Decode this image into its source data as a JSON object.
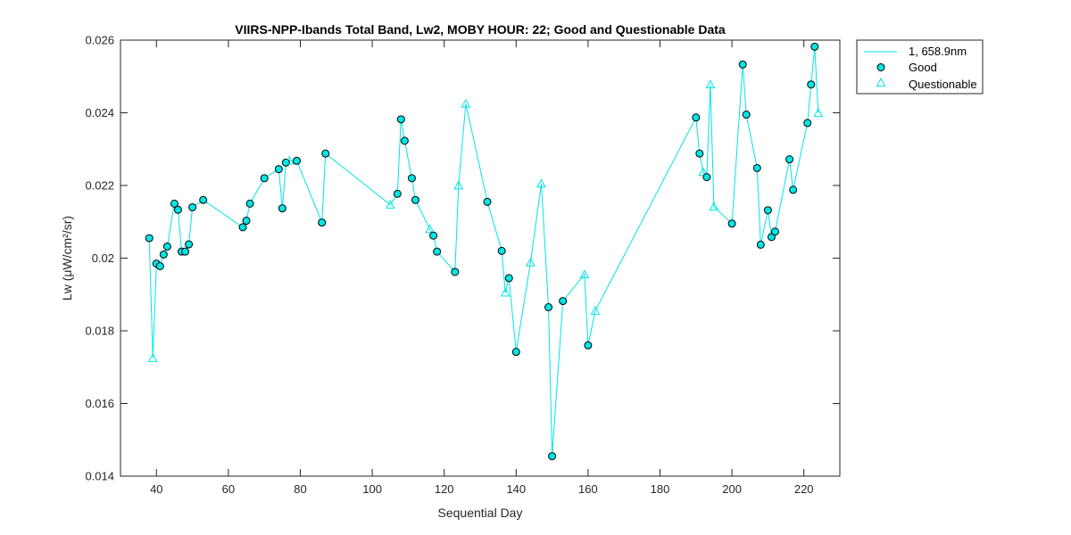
{
  "chart_data": {
    "type": "line",
    "title": "VIIRS-NPP-Ibands Total Band,  Lw2, MOBY HOUR: 22;  Good and Questionable Data",
    "xlabel": "Sequential Day",
    "ylabel": "Lw (μW/cm²/sr)",
    "xlim": [
      30,
      230
    ],
    "ylim": [
      0.014,
      0.026
    ],
    "xticks": [
      40,
      60,
      80,
      100,
      120,
      140,
      160,
      180,
      200,
      220
    ],
    "yticks": [
      0.014,
      0.016,
      0.018,
      0.02,
      0.022,
      0.024,
      0.026
    ],
    "ytick_labels": [
      "0.014",
      "0.016",
      "0.018",
      "0.02",
      "0.022",
      "0.024",
      "0.026"
    ],
    "grid": false,
    "legend_position": "top-right outside",
    "legend": {
      "line": "1, 658.9nm",
      "good": "Good",
      "questionable": "Questionable"
    },
    "colors": {
      "line": "#00e5e5",
      "marker_fill": "#00e5e5",
      "marker_edge": "#000000"
    },
    "series": [
      {
        "points": [
          {
            "x": 38,
            "y": 0.02055,
            "q": "good"
          },
          {
            "x": 39,
            "y": 0.01725,
            "q": "questionable"
          },
          {
            "x": 40,
            "y": 0.01985,
            "q": "good"
          },
          {
            "x": 41,
            "y": 0.01978,
            "q": "good"
          },
          {
            "x": 42,
            "y": 0.0201,
            "q": "good"
          },
          {
            "x": 43,
            "y": 0.02032,
            "q": "good"
          },
          {
            "x": 45,
            "y": 0.0215,
            "q": "good"
          },
          {
            "x": 46,
            "y": 0.02133,
            "q": "good"
          },
          {
            "x": 47,
            "y": 0.02018,
            "q": "good"
          },
          {
            "x": 48,
            "y": 0.02018,
            "q": "good"
          },
          {
            "x": 49,
            "y": 0.02038,
            "q": "good"
          },
          {
            "x": 50,
            "y": 0.0214,
            "q": "good"
          },
          {
            "x": 53,
            "y": 0.0216,
            "q": "good"
          },
          {
            "x": 64,
            "y": 0.02085,
            "q": "good"
          },
          {
            "x": 65,
            "y": 0.02103,
            "q": "good"
          },
          {
            "x": 66,
            "y": 0.0215,
            "q": "good"
          },
          {
            "x": 70,
            "y": 0.0222,
            "q": "good"
          },
          {
            "x": 74,
            "y": 0.02245,
            "q": "good"
          },
          {
            "x": 75,
            "y": 0.02137,
            "q": "good"
          },
          {
            "x": 76,
            "y": 0.02263,
            "q": "good"
          },
          {
            "x": 77,
            "y": 0.02268,
            "q": "questionable"
          },
          {
            "x": 79,
            "y": 0.02268,
            "q": "good"
          },
          {
            "x": 86,
            "y": 0.02098,
            "q": "good"
          },
          {
            "x": 87,
            "y": 0.02288,
            "q": "good"
          },
          {
            "x": 105,
            "y": 0.02147,
            "q": "questionable"
          },
          {
            "x": 107,
            "y": 0.02177,
            "q": "good"
          },
          {
            "x": 108,
            "y": 0.02382,
            "q": "good"
          },
          {
            "x": 109,
            "y": 0.02323,
            "q": "good"
          },
          {
            "x": 111,
            "y": 0.0222,
            "q": "good"
          },
          {
            "x": 112,
            "y": 0.0216,
            "q": "good"
          },
          {
            "x": 116,
            "y": 0.0208,
            "q": "questionable"
          },
          {
            "x": 117,
            "y": 0.02062,
            "q": "good"
          },
          {
            "x": 118,
            "y": 0.02018,
            "q": "good"
          },
          {
            "x": 123,
            "y": 0.01962,
            "q": "good"
          },
          {
            "x": 124,
            "y": 0.022,
            "q": "questionable"
          },
          {
            "x": 126,
            "y": 0.02425,
            "q": "questionable"
          },
          {
            "x": 132,
            "y": 0.02155,
            "q": "good"
          },
          {
            "x": 136,
            "y": 0.0202,
            "q": "good"
          },
          {
            "x": 137,
            "y": 0.01905,
            "q": "questionable"
          },
          {
            "x": 138,
            "y": 0.01945,
            "q": "good"
          },
          {
            "x": 140,
            "y": 0.01742,
            "q": "good"
          },
          {
            "x": 144,
            "y": 0.01988,
            "q": "questionable"
          },
          {
            "x": 147,
            "y": 0.02205,
            "q": "questionable"
          },
          {
            "x": 149,
            "y": 0.01865,
            "q": "good"
          },
          {
            "x": 150,
            "y": 0.01455,
            "q": "good"
          },
          {
            "x": 153,
            "y": 0.01882,
            "q": "good"
          },
          {
            "x": 159,
            "y": 0.01955,
            "q": "questionable"
          },
          {
            "x": 160,
            "y": 0.0176,
            "q": "good"
          },
          {
            "x": 162,
            "y": 0.01855,
            "q": "questionable"
          },
          {
            "x": 190,
            "y": 0.02387,
            "q": "good"
          },
          {
            "x": 191,
            "y": 0.02288,
            "q": "good"
          },
          {
            "x": 192,
            "y": 0.02237,
            "q": "questionable"
          },
          {
            "x": 193,
            "y": 0.02223,
            "q": "good"
          },
          {
            "x": 194,
            "y": 0.02478,
            "q": "questionable"
          },
          {
            "x": 195,
            "y": 0.02142,
            "q": "questionable"
          },
          {
            "x": 200,
            "y": 0.02095,
            "q": "good"
          },
          {
            "x": 203,
            "y": 0.02533,
            "q": "good"
          },
          {
            "x": 204,
            "y": 0.02395,
            "q": "good"
          },
          {
            "x": 207,
            "y": 0.02248,
            "q": "good"
          },
          {
            "x": 208,
            "y": 0.02037,
            "q": "good"
          },
          {
            "x": 210,
            "y": 0.02132,
            "q": "good"
          },
          {
            "x": 211,
            "y": 0.02058,
            "q": "good"
          },
          {
            "x": 212,
            "y": 0.02073,
            "q": "good"
          },
          {
            "x": 216,
            "y": 0.02272,
            "q": "good"
          },
          {
            "x": 217,
            "y": 0.02188,
            "q": "good"
          },
          {
            "x": 221,
            "y": 0.02372,
            "q": "good"
          },
          {
            "x": 222,
            "y": 0.02478,
            "q": "good"
          },
          {
            "x": 223,
            "y": 0.02582,
            "q": "good"
          },
          {
            "x": 224,
            "y": 0.024,
            "q": "questionable"
          }
        ]
      }
    ]
  }
}
